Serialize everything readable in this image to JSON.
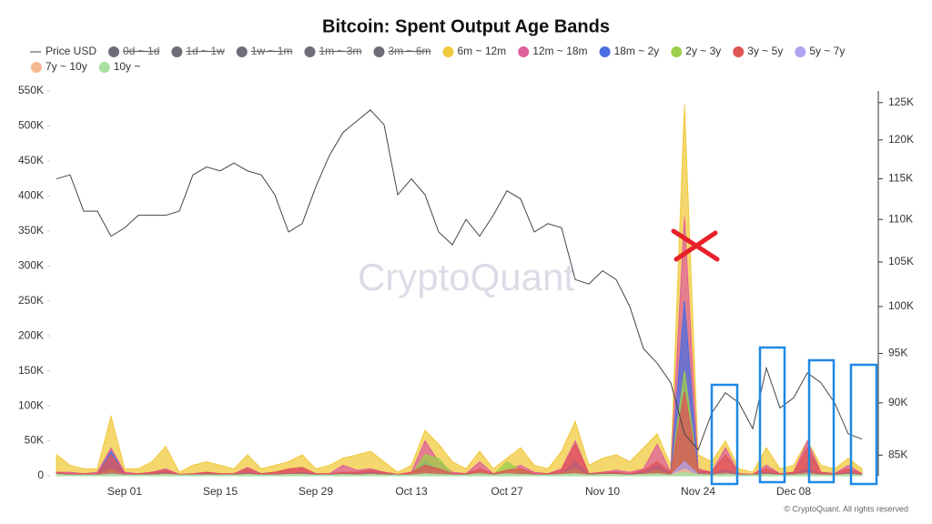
{
  "chart_data": {
    "type": "area",
    "title": "Bitcoin: Spent Output Age Bands",
    "watermark": "CryptoQuant",
    "credit": "© CryptoQuant. All rights reserved",
    "categories": [
      null,
      null,
      null,
      null,
      null,
      "Sep 01",
      null,
      null,
      null,
      null,
      null,
      null,
      "Sep 15",
      null,
      null,
      null,
      null,
      null,
      null,
      "Sep 29",
      null,
      null,
      null,
      null,
      null,
      null,
      "Oct 13",
      null,
      null,
      null,
      null,
      null,
      null,
      "Oct 27",
      null,
      null,
      null,
      null,
      null,
      null,
      "Nov 10",
      null,
      null,
      null,
      null,
      null,
      null,
      "Nov 24",
      null,
      null,
      null,
      null,
      null,
      null,
      "Dec 08",
      null,
      null,
      null,
      null,
      null
    ],
    "ylim": [
      0,
      550000
    ],
    "yticks": [
      0,
      {
        "value": 50000,
        "label": "50K"
      },
      {
        "value": 100000,
        "label": "100K"
      },
      {
        "value": 150000,
        "label": "150K"
      },
      {
        "value": 200000,
        "label": "200K"
      },
      {
        "value": 250000,
        "label": "250K"
      },
      {
        "value": 300000,
        "label": "300K"
      },
      {
        "value": 350000,
        "label": "350K"
      },
      {
        "value": 400000,
        "label": "400K"
      },
      {
        "value": 450000,
        "label": "450K"
      },
      {
        "value": 500000,
        "label": "500K"
      },
      {
        "value": 550000,
        "label": "550K"
      }
    ],
    "y2lim": [
      83100,
      126600
    ],
    "y2scale": "log",
    "y2ticks": [
      {
        "value": 85000,
        "label": "85K"
      },
      {
        "value": 90000,
        "label": "90K"
      },
      {
        "value": 95000,
        "label": "95K"
      },
      {
        "value": 100000,
        "label": "100K"
      },
      {
        "value": 105000,
        "label": "105K"
      },
      {
        "value": 110000,
        "label": "110K"
      },
      {
        "value": 115000,
        "label": "115K"
      },
      {
        "value": 120000,
        "label": "120K"
      },
      {
        "value": 125000,
        "label": "125K"
      }
    ],
    "series": [
      {
        "name": "Price USD",
        "kind": "line",
        "axis": "y2",
        "color": "#444444",
        "values": [
          115000,
          115500,
          111000,
          111000,
          108000,
          109000,
          110500,
          110500,
          110500,
          111000,
          115500,
          116500,
          116000,
          117000,
          116000,
          115500,
          113000,
          108500,
          109500,
          114000,
          118000,
          121000,
          122500,
          124000,
          122000,
          113000,
          115000,
          113000,
          108500,
          107000,
          110000,
          108000,
          110500,
          113500,
          112500,
          108500,
          109500,
          109000,
          103000,
          102500,
          104000,
          103000,
          100000,
          95500,
          94000,
          92000,
          87000,
          85500,
          89000,
          91000,
          90000,
          87500,
          93500,
          89500,
          90500,
          93000,
          92000,
          90000,
          87000,
          86500
        ]
      },
      {
        "name": "0d ~ 1d",
        "kind": "area",
        "visible": false,
        "color": "#6e6e78"
      },
      {
        "name": "1d ~ 1w",
        "kind": "area",
        "visible": false,
        "color": "#6e6e78"
      },
      {
        "name": "1w ~ 1m",
        "kind": "area",
        "visible": false,
        "color": "#6e6e78"
      },
      {
        "name": "1m ~ 3m",
        "kind": "area",
        "visible": false,
        "color": "#6e6e78"
      },
      {
        "name": "3m ~ 6m",
        "kind": "area",
        "visible": false,
        "color": "#6e6e78"
      },
      {
        "name": "6m ~ 12m",
        "kind": "area",
        "color": "#f0c93c",
        "values": [
          30000,
          15000,
          10000,
          10000,
          85000,
          10000,
          10000,
          20000,
          42000,
          5000,
          15000,
          20000,
          15000,
          10000,
          30000,
          10000,
          15000,
          20000,
          30000,
          10000,
          15000,
          25000,
          30000,
          35000,
          20000,
          5000,
          15000,
          65000,
          45000,
          20000,
          10000,
          35000,
          10000,
          25000,
          40000,
          15000,
          10000,
          35000,
          78000,
          15000,
          25000,
          30000,
          20000,
          40000,
          60000,
          15000,
          530000,
          30000,
          20000,
          50000,
          10000,
          5000,
          40000,
          10000,
          15000,
          50000,
          15000,
          10000,
          25000,
          10000
        ]
      },
      {
        "name": "12m ~ 18m",
        "kind": "area",
        "color": "#e0609a",
        "values": [
          5000,
          5000,
          3000,
          5000,
          40000,
          5000,
          3000,
          5000,
          10000,
          2000,
          3000,
          5000,
          3000,
          3000,
          12000,
          3000,
          5000,
          8000,
          10000,
          3000,
          3000,
          15000,
          8000,
          10000,
          5000,
          2000,
          5000,
          50000,
          20000,
          5000,
          3000,
          20000,
          3000,
          8000,
          15000,
          5000,
          3000,
          10000,
          50000,
          3000,
          5000,
          8000,
          5000,
          10000,
          45000,
          5000,
          370000,
          10000,
          5000,
          40000,
          3000,
          2000,
          15000,
          3000,
          5000,
          50000,
          5000,
          3000,
          15000,
          3000
        ]
      },
      {
        "name": "18m ~ 2y",
        "kind": "area",
        "color": "#4a6fe0",
        "values": [
          3000,
          2000,
          2000,
          2000,
          35000,
          2000,
          2000,
          3000,
          5000,
          1000,
          2000,
          3000,
          2000,
          2000,
          5000,
          2000,
          2000,
          3000,
          5000,
          2000,
          2000,
          3000,
          3000,
          5000,
          3000,
          1000,
          2000,
          20000,
          8000,
          2000,
          2000,
          5000,
          2000,
          3000,
          5000,
          2000,
          2000,
          3000,
          20000,
          2000,
          3000,
          3000,
          2000,
          5000,
          15000,
          3000,
          250000,
          5000,
          3000,
          8000,
          2000,
          1000,
          5000,
          2000,
          3000,
          10000,
          3000,
          2000,
          5000,
          2000
        ]
      },
      {
        "name": "2y ~ 3y",
        "kind": "area",
        "color": "#9ccf4a",
        "values": [
          2000,
          1000,
          1000,
          1000,
          10000,
          1000,
          1000,
          2000,
          3000,
          1000,
          1000,
          2000,
          1000,
          1000,
          3000,
          1000,
          1000,
          2000,
          3000,
          1000,
          1000,
          2000,
          2000,
          3000,
          2000,
          1000,
          1000,
          30000,
          25000,
          2000,
          1000,
          5000,
          1000,
          20000,
          8000,
          2000,
          1000,
          3000,
          10000,
          1000,
          2000,
          2000,
          1000,
          3000,
          8000,
          2000,
          150000,
          3000,
          2000,
          5000,
          1000,
          1000,
          3000,
          1000,
          2000,
          5000,
          2000,
          1000,
          3000,
          1000
        ]
      },
      {
        "name": "3y ~ 5y",
        "kind": "area",
        "color": "#e05555",
        "values": [
          5000,
          3000,
          3000,
          3000,
          30000,
          3000,
          3000,
          5000,
          8000,
          2000,
          3000,
          5000,
          3000,
          3000,
          10000,
          3000,
          5000,
          10000,
          12000,
          3000,
          3000,
          5000,
          5000,
          8000,
          5000,
          2000,
          5000,
          15000,
          10000,
          3000,
          3000,
          10000,
          3000,
          8000,
          10000,
          3000,
          3000,
          8000,
          45000,
          3000,
          5000,
          5000,
          3000,
          8000,
          20000,
          5000,
          120000,
          8000,
          5000,
          30000,
          3000,
          2000,
          10000,
          3000,
          5000,
          40000,
          5000,
          3000,
          10000,
          3000
        ]
      },
      {
        "name": "5y ~ 7y",
        "kind": "area",
        "color": "#b0a4f0",
        "values": [
          1000,
          1000,
          1000,
          1000,
          3000,
          1000,
          1000,
          1000,
          2000,
          1000,
          1000,
          1000,
          1000,
          1000,
          2000,
          1000,
          1000,
          1000,
          2000,
          1000,
          1000,
          1000,
          1000,
          2000,
          1000,
          1000,
          1000,
          3000,
          2000,
          1000,
          1000,
          2000,
          1000,
          2000,
          2000,
          1000,
          1000,
          2000,
          3000,
          1000,
          1000,
          1000,
          1000,
          2000,
          3000,
          1000,
          20000,
          2000,
          1000,
          3000,
          1000,
          1000,
          2000,
          1000,
          1000,
          3000,
          1000,
          1000,
          2000,
          1000
        ]
      },
      {
        "name": "7y ~ 10y",
        "kind": "area",
        "color": "#f2b890",
        "values": [
          1000,
          1000,
          0,
          0,
          2000,
          0,
          0,
          1000,
          1000,
          0,
          0,
          1000,
          0,
          0,
          1000,
          0,
          1000,
          1000,
          1000,
          0,
          0,
          1000,
          1000,
          1000,
          1000,
          0,
          1000,
          2000,
          1000,
          0,
          0,
          1000,
          0,
          1000,
          1000,
          0,
          0,
          1000,
          2000,
          0,
          1000,
          1000,
          0,
          1000,
          2000,
          1000,
          10000,
          1000,
          1000,
          2000,
          0,
          0,
          1000,
          0,
          1000,
          2000,
          1000,
          0,
          1000,
          0
        ]
      },
      {
        "name": "10y ~",
        "kind": "area",
        "color": "#a8e0a0",
        "values": [
          2000,
          1000,
          1000,
          1000,
          2000,
          1000,
          1000,
          1000,
          2000,
          1000,
          1000,
          1000,
          1000,
          1000,
          2000,
          1000,
          1000,
          2000,
          2000,
          1000,
          1000,
          2000,
          1000,
          2000,
          1000,
          1000,
          1000,
          3000,
          2000,
          1000,
          1000,
          3000,
          1000,
          3000,
          2000,
          1000,
          1000,
          2000,
          3000,
          1000,
          2000,
          2000,
          1000,
          2000,
          3000,
          1000,
          5000,
          2000,
          1000,
          2000,
          1000,
          1000,
          2000,
          1000,
          1000,
          2000,
          1000,
          1000,
          2000,
          1000
        ]
      }
    ]
  }
}
